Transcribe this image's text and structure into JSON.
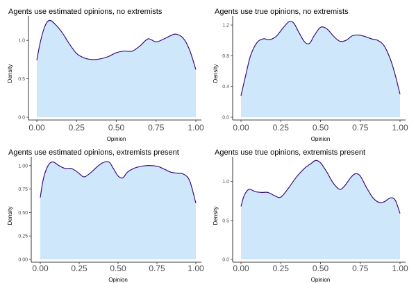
{
  "colors": {
    "fill": "#cfe7fb",
    "line": "#3a0f7a"
  },
  "chart_data": [
    {
      "type": "area",
      "title": "Agents use estimated opinions, no extremists",
      "xlabel": "Opinion",
      "ylabel": "Density",
      "xlim": [
        0,
        1
      ],
      "ylim": [
        0,
        1.3
      ],
      "xticks": [
        0,
        0.25,
        0.5,
        0.75,
        1
      ],
      "xtick_labels": [
        "0.00",
        "0.25",
        "0.50",
        "0.75",
        "1.00"
      ],
      "yticks": [
        0,
        0.5,
        1.0
      ],
      "ytick_labels": [
        "0.0",
        "0.5",
        "1.0"
      ],
      "x": [
        0,
        0.02,
        0.05,
        0.08,
        0.12,
        0.16,
        0.2,
        0.25,
        0.3,
        0.35,
        0.4,
        0.45,
        0.5,
        0.55,
        0.6,
        0.65,
        0.7,
        0.75,
        0.8,
        0.85,
        0.88,
        0.92,
        0.96,
        1.0
      ],
      "y": [
        0.74,
        0.96,
        1.18,
        1.26,
        1.2,
        1.1,
        0.97,
        0.83,
        0.77,
        0.75,
        0.76,
        0.79,
        0.84,
        0.86,
        0.86,
        0.93,
        1.02,
        0.98,
        1.02,
        1.07,
        1.08,
        1.03,
        0.88,
        0.62
      ]
    },
    {
      "type": "area",
      "title": "Agents use true opinions, no extremists",
      "xlabel": "Opinion",
      "ylabel": "Density",
      "xlim": [
        0,
        1
      ],
      "ylim": [
        0,
        1.3
      ],
      "xticks": [
        0,
        0.25,
        0.5,
        0.75,
        1
      ],
      "xtick_labels": [
        "0.00",
        "0.25",
        "0.50",
        "0.75",
        "1.00"
      ],
      "yticks": [
        0,
        0.4,
        0.8,
        1.2
      ],
      "ytick_labels": [
        "0.0",
        "0.4",
        "0.8",
        "1.2"
      ],
      "x": [
        0,
        0.03,
        0.06,
        0.1,
        0.14,
        0.18,
        0.22,
        0.26,
        0.3,
        0.33,
        0.36,
        0.4,
        0.43,
        0.46,
        0.5,
        0.54,
        0.58,
        0.62,
        0.66,
        0.7,
        0.74,
        0.78,
        0.82,
        0.86,
        0.9,
        0.94,
        0.97,
        1.0
      ],
      "y": [
        0.28,
        0.55,
        0.8,
        0.97,
        1.02,
        1.01,
        1.05,
        1.15,
        1.24,
        1.23,
        1.12,
        0.98,
        0.96,
        1.06,
        1.17,
        1.15,
        1.06,
        0.99,
        1.0,
        1.06,
        1.07,
        1.05,
        1.02,
        1.0,
        0.93,
        0.75,
        0.55,
        0.3
      ]
    },
    {
      "type": "area",
      "title": "Agents use estimated opinions, extremists present",
      "xlabel": "Opinion",
      "ylabel": "Density",
      "xlim": [
        0,
        1
      ],
      "ylim": [
        0,
        1.08
      ],
      "xticks": [
        0,
        0.25,
        0.5,
        0.75,
        1
      ],
      "xtick_labels": [
        "0.00",
        "0.25",
        "0.50",
        "0.75",
        "1.00"
      ],
      "yticks": [
        0,
        0.25,
        0.5,
        0.75,
        1.0
      ],
      "ytick_labels": [
        "0.00",
        "0.25",
        "0.50",
        "0.75",
        "1.00"
      ],
      "x": [
        0,
        0.02,
        0.05,
        0.08,
        0.12,
        0.16,
        0.2,
        0.24,
        0.28,
        0.32,
        0.36,
        0.4,
        0.44,
        0.47,
        0.5,
        0.53,
        0.56,
        0.6,
        0.64,
        0.68,
        0.72,
        0.76,
        0.8,
        0.84,
        0.88,
        0.92,
        0.96,
        1.0
      ],
      "y": [
        0.66,
        0.86,
        1.0,
        1.04,
        1.0,
        0.97,
        0.97,
        0.93,
        0.88,
        0.92,
        0.98,
        1.03,
        1.04,
        0.97,
        0.89,
        0.87,
        0.93,
        0.97,
        0.99,
        1.0,
        1.0,
        0.99,
        0.96,
        0.93,
        0.92,
        0.91,
        0.84,
        0.6
      ]
    },
    {
      "type": "area",
      "title": "Agents use true opinions, extremists present",
      "xlabel": "Opinion",
      "ylabel": "Density",
      "xlim": [
        0,
        1
      ],
      "ylim": [
        0,
        1.3
      ],
      "xticks": [
        0,
        0.25,
        0.5,
        0.75,
        1
      ],
      "xtick_labels": [
        "0.00",
        "0.25",
        "0.50",
        "0.75",
        "1.00"
      ],
      "yticks": [
        0,
        0.5,
        1.0
      ],
      "ytick_labels": [
        "0.0",
        "0.5",
        "1.0"
      ],
      "x": [
        0,
        0.02,
        0.05,
        0.09,
        0.13,
        0.17,
        0.21,
        0.25,
        0.3,
        0.35,
        0.4,
        0.44,
        0.47,
        0.5,
        0.54,
        0.58,
        0.62,
        0.65,
        0.69,
        0.72,
        0.75,
        0.79,
        0.83,
        0.87,
        0.9,
        0.94,
        0.97,
        1.0
      ],
      "y": [
        0.68,
        0.82,
        0.9,
        0.87,
        0.86,
        0.86,
        0.82,
        0.8,
        0.92,
        1.06,
        1.17,
        1.23,
        1.27,
        1.24,
        1.12,
        0.98,
        0.9,
        0.94,
        1.05,
        1.1,
        1.07,
        0.92,
        0.79,
        0.73,
        0.74,
        0.79,
        0.76,
        0.59
      ]
    }
  ]
}
